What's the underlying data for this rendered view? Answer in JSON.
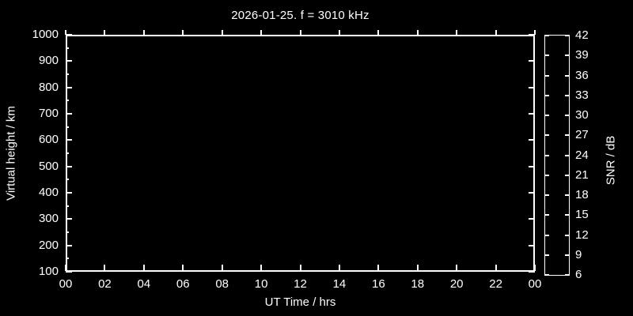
{
  "chart_data": {
    "type": "heatmap",
    "title": "2026-01-25. f = 3010 kHz",
    "xlabel": "UT Time / hrs",
    "ylabel": "Virtual height / km",
    "x_tick_labels": [
      "00",
      "02",
      "04",
      "06",
      "08",
      "10",
      "12",
      "14",
      "16",
      "18",
      "20",
      "22",
      "00"
    ],
    "x_tick_hours": [
      0,
      2,
      4,
      6,
      8,
      10,
      12,
      14,
      16,
      18,
      20,
      22,
      24
    ],
    "xlim": [
      0,
      24
    ],
    "y_tick_values": [
      1000,
      900,
      800,
      700,
      600,
      500,
      400,
      300,
      200,
      100
    ],
    "y_minor_step_km": 50,
    "ylim": [
      100,
      1000
    ],
    "values": [],
    "background_color": "#000000",
    "axis_color": "#ffffff",
    "colorbar": {
      "label": "SNR / dB",
      "tick_values": [
        42,
        39,
        36,
        33,
        30,
        27,
        24,
        21,
        18,
        15,
        12,
        9,
        6
      ],
      "range": [
        6,
        42
      ],
      "segment_colors_top_to_bottom": [
        "#fa0000",
        "#fb431f",
        "#fb8c47",
        "#f0c468",
        "#c3e88a",
        "#8ff5a9",
        "#64f6bd",
        "#3ce4da",
        "#10c0e9",
        "#2e89f5",
        "#4a48f4",
        "#8400ee"
      ]
    }
  }
}
